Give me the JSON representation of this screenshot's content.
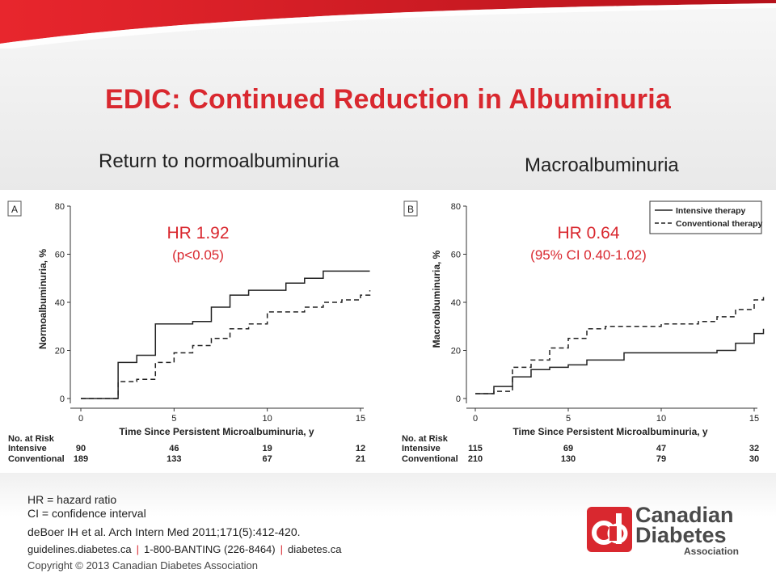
{
  "header": {
    "title": "EDIC: Continued Reduction in Albuminuria"
  },
  "panels": {
    "a": {
      "heading": "Return to normoalbuminuria",
      "hr": "HR 1.92",
      "hr_detail": "(p<0.05)"
    },
    "b": {
      "heading": "Macroalbuminuria",
      "hr": "HR 0.64",
      "hr_detail": "(95% CI 0.40-1.02)"
    }
  },
  "risk_table": {
    "header": "No. at Risk",
    "row_intensive": "Intensive",
    "row_conventional": "Conventional"
  },
  "footer": {
    "hr_def": "HR = hazard ratio",
    "ci_def": "CI = confidence interval",
    "reference": "deBoer IH et al. Arch Intern Med 2011;171(5):412-420.",
    "site": "guidelines.diabetes.ca",
    "phone": "1-800-BANTING (226-8464)",
    "site2": "diabetes.ca",
    "separator": "|",
    "copyright": "Copyright © 2013 Canadian Diabetes Association"
  },
  "logo": {
    "mark": "cd",
    "line1": "Canadian",
    "line2": "Diabetes",
    "line3": "Association"
  },
  "colors": {
    "accent": "#d9282f",
    "text": "#222222",
    "logo_gray": "#4a4a4a"
  },
  "chart_data": [
    {
      "type": "line",
      "panel_label": "A",
      "xlabel": "Time Since Persistent Microalbuminuria, y",
      "ylabel": "Normoalbuminuria, %",
      "xlim": [
        0,
        15
      ],
      "ylim": [
        0,
        80
      ],
      "xticks": [
        0,
        5,
        10,
        15
      ],
      "yticks": [
        0,
        20,
        40,
        60,
        80
      ],
      "step": true,
      "series": [
        {
          "name": "Intensive therapy",
          "style": "solid",
          "x": [
            0,
            2,
            3,
            4,
            6,
            7,
            8,
            9,
            11,
            12,
            13,
            15.5
          ],
          "y": [
            0,
            15,
            18,
            31,
            32,
            38,
            43,
            45,
            48,
            50,
            53,
            53
          ]
        },
        {
          "name": "Conventional therapy",
          "style": "dashed",
          "x": [
            0,
            2,
            3,
            4,
            5,
            6,
            7,
            8,
            9,
            10,
            12,
            13,
            14,
            15,
            15.5
          ],
          "y": [
            0,
            7,
            8,
            15,
            19,
            22,
            25,
            29,
            31,
            36,
            38,
            40,
            41,
            43,
            45
          ]
        }
      ],
      "risk_table": {
        "x": [
          0,
          5,
          10,
          15
        ],
        "intensive": [
          "90",
          "46",
          "19",
          "12"
        ],
        "conventional": [
          "189",
          "133",
          "67",
          "21"
        ]
      }
    },
    {
      "type": "line",
      "panel_label": "B",
      "xlabel": "Time Since Persistent Microalbuminuria, y",
      "ylabel": "Macroalbuminuria, %",
      "xlim": [
        0,
        15
      ],
      "ylim": [
        0,
        80
      ],
      "xticks": [
        0,
        5,
        10,
        15
      ],
      "yticks": [
        0,
        20,
        40,
        60,
        80
      ],
      "step": true,
      "legend": {
        "position": "top-right",
        "entries": [
          "Intensive therapy",
          "Conventional therapy"
        ]
      },
      "series": [
        {
          "name": "Intensive therapy",
          "style": "solid",
          "x": [
            0,
            1,
            2,
            3,
            4,
            5,
            6,
            8,
            13,
            14,
            15,
            15.5
          ],
          "y": [
            2,
            5,
            9,
            12,
            13,
            14,
            16,
            19,
            20,
            23,
            27,
            29
          ]
        },
        {
          "name": "Conventional therapy",
          "style": "dashed",
          "x": [
            0,
            1,
            2,
            3,
            4,
            5,
            6,
            7,
            10,
            12,
            13,
            14,
            15,
            15.5
          ],
          "y": [
            2,
            3,
            13,
            16,
            21,
            25,
            29,
            30,
            31,
            32,
            34,
            37,
            41,
            43
          ]
        }
      ],
      "risk_table": {
        "x": [
          0,
          5,
          10,
          15
        ],
        "intensive": [
          "115",
          "69",
          "47",
          "32"
        ],
        "conventional": [
          "210",
          "130",
          "79",
          "30"
        ]
      }
    }
  ]
}
